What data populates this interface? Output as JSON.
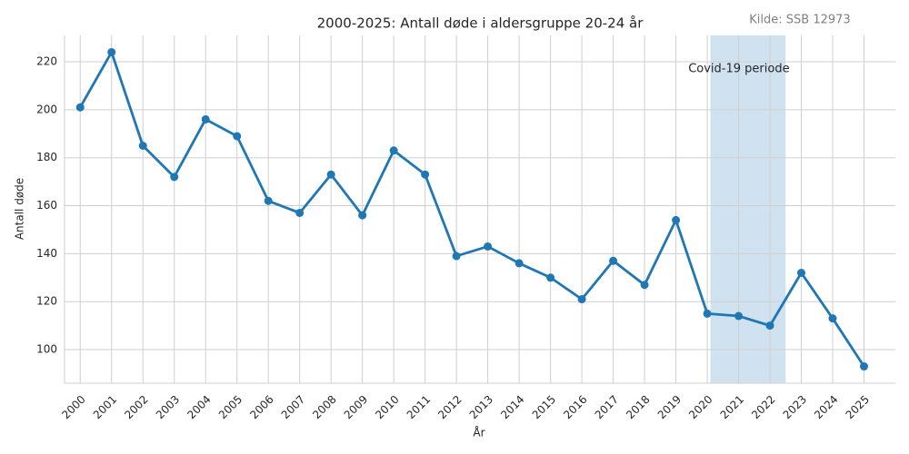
{
  "chart_data": {
    "type": "line",
    "title": "2000-2025: Antall døde i aldersgruppe 20-24 år",
    "source": "Kilde: SSB 12973",
    "x_label": "År",
    "y_label": "Antall døde",
    "x": [
      2000,
      2001,
      2002,
      2003,
      2004,
      2005,
      2006,
      2007,
      2008,
      2009,
      2010,
      2011,
      2012,
      2013,
      2014,
      2015,
      2016,
      2017,
      2018,
      2019,
      2020,
      2021,
      2022,
      2023,
      2024,
      2025
    ],
    "series": [
      {
        "name": "Antall døde",
        "color": "#1f77b4",
        "values": [
          201,
          224,
          185,
          172,
          196,
          189,
          162,
          157,
          173,
          156,
          183,
          173,
          139,
          143,
          136,
          130,
          121,
          137,
          127,
          154,
          115,
          114,
          110,
          132,
          113,
          93
        ]
      }
    ],
    "xlim": [
      1999.5,
      2026
    ],
    "xticks": [
      2000,
      2001,
      2002,
      2003,
      2004,
      2005,
      2006,
      2007,
      2008,
      2009,
      2010,
      2011,
      2012,
      2013,
      2014,
      2015,
      2016,
      2017,
      2018,
      2019,
      2020,
      2021,
      2022,
      2023,
      2024,
      2025
    ],
    "ylim": [
      86,
      231
    ],
    "yticks": [
      100,
      120,
      140,
      160,
      180,
      200,
      220
    ],
    "grid": true,
    "shaded_span": {
      "label": "Covid-19 periode",
      "x0": 2020.1,
      "x1": 2022.5,
      "color": "#a9c9e4"
    }
  }
}
